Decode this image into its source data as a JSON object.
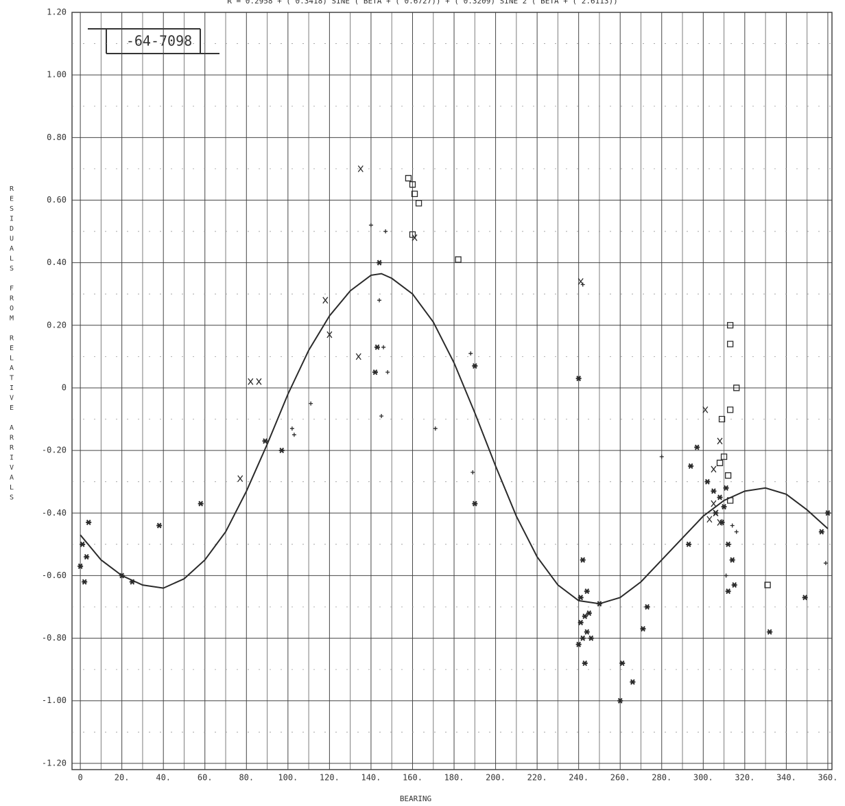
{
  "chart_data": {
    "type": "scatter",
    "title": "R = 0.2958 + ( 0.3418) SINE ( BETA + ( 0.6727)) + ( 0.3209) SINE 2 ( BETA + ( 2.6113))",
    "annotation": "-64-7098",
    "x_label": "BEARING",
    "y_label": "RESIDUALS FROM RELATIVE ARRIVALS",
    "xlim": [
      -4,
      362
    ],
    "ylim": [
      -1.22,
      1.2
    ],
    "xticks": [
      0,
      {
        "value": 20,
        "label": "20."
      },
      {
        "value": 40,
        "label": "40."
      },
      {
        "value": 60,
        "label": "60."
      },
      {
        "value": 80,
        "label": "80."
      },
      {
        "value": 100,
        "label": "100."
      },
      {
        "value": 120,
        "label": "120."
      },
      {
        "value": 140,
        "label": "140."
      },
      {
        "value": 160,
        "label": "160."
      },
      {
        "value": 180,
        "label": "180."
      },
      {
        "value": 200,
        "label": "200."
      },
      {
        "value": 220,
        "label": "220."
      },
      {
        "value": 240,
        "label": "240."
      },
      {
        "value": 260,
        "label": "260."
      },
      {
        "value": 280,
        "label": "280."
      },
      {
        "value": 300,
        "label": "300."
      },
      {
        "value": 320,
        "label": "320."
      },
      {
        "value": 340,
        "label": "340."
      },
      {
        "value": 360,
        "label": "360."
      }
    ],
    "yticks": [
      {
        "value": 1.2,
        "label": "1.20"
      },
      {
        "value": 1,
        "label": "1.00"
      },
      {
        "value": 0.8,
        "label": "0.80"
      },
      {
        "value": 0.6,
        "label": "0.60"
      },
      {
        "value": 0.4,
        "label": "0.40"
      },
      {
        "value": 0.2,
        "label": "0.20"
      },
      0,
      {
        "value": -0.2,
        "label": "-0.20"
      },
      {
        "value": -0.4,
        "label": "-0.40"
      },
      {
        "value": -0.6,
        "label": "-0.60"
      },
      {
        "value": -0.8,
        "label": "-0.80"
      },
      {
        "value": -1,
        "label": "-1.00"
      },
      {
        "value": -1.2,
        "label": "-1.20"
      }
    ],
    "grid": true,
    "color": "#2a2a2a",
    "curve": {
      "x": [
        0,
        10,
        20,
        30,
        40,
        50,
        60,
        70,
        80,
        90,
        100,
        110,
        120,
        130,
        140,
        145,
        150,
        160,
        170,
        180,
        190,
        200,
        210,
        220,
        230,
        240,
        250,
        260,
        270,
        280,
        290,
        300,
        310,
        320,
        330,
        340,
        350,
        360
      ],
      "values": [
        -0.47,
        -0.55,
        -0.6,
        -0.63,
        -0.64,
        -0.61,
        -0.55,
        -0.46,
        -0.33,
        -0.18,
        -0.02,
        0.12,
        0.23,
        0.31,
        0.36,
        0.365,
        0.35,
        0.3,
        0.21,
        0.08,
        -0.08,
        -0.25,
        -0.41,
        -0.54,
        -0.63,
        -0.68,
        -0.69,
        -0.67,
        -0.62,
        -0.55,
        -0.48,
        -0.41,
        -0.36,
        -0.33,
        -0.32,
        -0.34,
        -0.39,
        -0.45
      ]
    },
    "series": [
      {
        "marker": "square",
        "x": [
          158,
          160,
          161,
          163,
          160,
          182,
          313,
          313,
          316,
          313,
          309,
          310,
          308,
          312,
          313,
          331
        ],
        "values": [
          0.67,
          0.65,
          0.62,
          0.59,
          0.49,
          0.41,
          0.2,
          0.14,
          0.0,
          -0.07,
          -0.1,
          -0.22,
          -0.24,
          -0.28,
          -0.36,
          -0.63
        ]
      },
      {
        "marker": "x",
        "x": [
          82,
          86,
          77,
          118,
          120,
          134,
          161,
          301,
          305,
          308,
          305,
          308,
          303,
          306,
          241,
          135
        ],
        "values": [
          0.02,
          0.02,
          -0.29,
          0.28,
          0.17,
          0.1,
          0.48,
          -0.07,
          -0.26,
          -0.17,
          -0.37,
          -0.43,
          -0.42,
          -0.4,
          0.34,
          0.7
        ]
      },
      {
        "marker": "star",
        "x": [
          0,
          1,
          4,
          3,
          2,
          20,
          25,
          38,
          58,
          89,
          97,
          144,
          190,
          240,
          242,
          241,
          243,
          245,
          244,
          242,
          246,
          240,
          243,
          241,
          244,
          250,
          261,
          266,
          260,
          273,
          271,
          293,
          297,
          294,
          302,
          305,
          308,
          310,
          311,
          306,
          309,
          312,
          314,
          315,
          312,
          332,
          349,
          360,
          357,
          143,
          142,
          190
        ],
        "values": [
          -0.57,
          -0.5,
          -0.43,
          -0.54,
          -0.62,
          -0.6,
          -0.62,
          -0.44,
          -0.37,
          -0.17,
          -0.2,
          0.4,
          0.07,
          0.03,
          -0.55,
          -0.75,
          -0.73,
          -0.72,
          -0.78,
          -0.8,
          -0.8,
          -0.82,
          -0.88,
          -0.67,
          -0.65,
          -0.69,
          -0.88,
          -0.94,
          -1.0,
          -0.7,
          -0.77,
          -0.5,
          -0.19,
          -0.25,
          -0.3,
          -0.33,
          -0.35,
          -0.38,
          -0.32,
          -0.4,
          -0.43,
          -0.5,
          -0.55,
          -0.63,
          -0.65,
          -0.78,
          -0.67,
          -0.4,
          -0.46,
          0.13,
          0.05,
          -0.37
        ]
      },
      {
        "marker": "plus",
        "x": [
          147,
          140,
          144,
          146,
          148,
          145,
          111,
          102,
          103,
          171,
          189,
          242,
          188,
          314,
          316,
          311,
          359,
          280
        ],
        "values": [
          0.5,
          0.52,
          0.28,
          0.13,
          0.05,
          -0.09,
          -0.05,
          -0.13,
          -0.15,
          -0.13,
          -0.27,
          0.33,
          0.11,
          -0.44,
          -0.46,
          -0.6,
          -0.56,
          -0.22
        ]
      }
    ]
  }
}
